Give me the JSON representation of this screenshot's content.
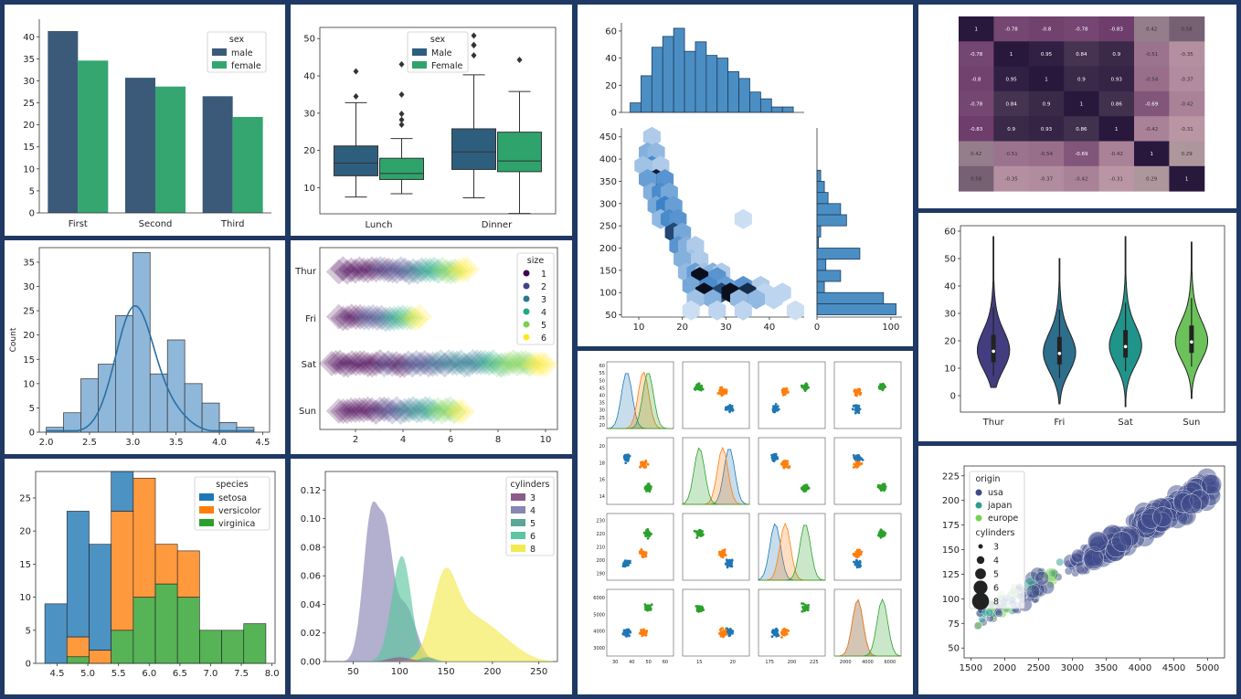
{
  "colors": {
    "frame": "#1f3864",
    "viridis_dark": "#3b5a7a",
    "viridis_green": "#35a670",
    "box_male": "#2e5e7e",
    "box_female": "#2ea36c",
    "hist_blue": "#8fb7d9",
    "kde_blue": "#2a6fa5",
    "tab_blue": "#1f77b4",
    "tab_orange": "#ff7f0e",
    "tab_green": "#2ca02c",
    "heat_dark": "#2b1a3d",
    "heat_light": "#f0d5d0"
  },
  "chart_data": [
    {
      "id": "titanic-bar",
      "type": "bar",
      "categories": [
        "First",
        "Second",
        "Third"
      ],
      "series": [
        {
          "name": "male",
          "values": [
            41.3,
            30.7,
            26.5
          ]
        },
        {
          "name": "female",
          "values": [
            34.6,
            28.7,
            21.8
          ]
        }
      ],
      "legend_title": "sex",
      "legend": [
        "male",
        "female"
      ],
      "ylim": [
        0,
        44
      ],
      "yticks": [
        "0",
        "5",
        "10",
        "15",
        "20",
        "25",
        "30",
        "35",
        "40"
      ],
      "legend_position": "top-right"
    },
    {
      "id": "tips-box",
      "type": "box",
      "categories": [
        "Lunch",
        "Dinner"
      ],
      "series": [
        {
          "name": "Male",
          "boxes": [
            {
              "min": 7.5,
              "q1": 13.2,
              "median": 16.6,
              "q3": 21.2,
              "max": 32.8,
              "outliers": [
                34.5,
                41.2
              ]
            },
            {
              "min": 7.3,
              "q1": 14.9,
              "median": 19.6,
              "q3": 25.8,
              "max": 40.3,
              "outliers": [
                45.5,
                48.2,
                48.3,
                50.8
              ]
            }
          ]
        },
        {
          "name": "Female",
          "boxes": [
            {
              "min": 8.4,
              "q1": 12.2,
              "median": 13.8,
              "q3": 17.9,
              "max": 23.2,
              "outliers": [
                26.9,
                28.2,
                29.8,
                35.0,
                43.1
              ]
            },
            {
              "min": 3.1,
              "q1": 14.3,
              "median": 17.2,
              "q3": 24.9,
              "max": 35.8,
              "outliers": [
                44.3
              ]
            }
          ]
        }
      ],
      "legend_title": "sex",
      "legend": [
        "Male",
        "Female"
      ],
      "ylim": [
        3,
        53
      ],
      "yticks": [
        "10",
        "20",
        "30",
        "40",
        "50"
      ]
    },
    {
      "id": "joint-hex",
      "type": "hexbin",
      "top_hist": {
        "bin_width": 2.5,
        "x_start": 8,
        "values": [
          7,
          27,
          48,
          56,
          62,
          45,
          52,
          42,
          40,
          30,
          25,
          15,
          10,
          4,
          4
        ]
      },
      "right_hist": {
        "bin_width": 25,
        "y_start": 50,
        "values": [
          107,
          90,
          10,
          32,
          12,
          58,
          2,
          5,
          40,
          32,
          15,
          10,
          5
        ]
      },
      "main_yticks": [
        "50",
        "100",
        "150",
        "200",
        "250",
        "300",
        "350",
        "400",
        "450"
      ],
      "main_xticks": [
        "10",
        "20",
        "30",
        "40"
      ],
      "top_yticks": [
        "0",
        "20",
        "40",
        "60"
      ],
      "right_xticks": [
        "0",
        "100"
      ],
      "cells": [
        {
          "x": 13,
          "y": 450,
          "v": 0.2
        },
        {
          "x": 12,
          "y": 415,
          "v": 0.35
        },
        {
          "x": 14,
          "y": 415,
          "v": 0.3
        },
        {
          "x": 13,
          "y": 385,
          "v": 0.55
        },
        {
          "x": 11,
          "y": 385,
          "v": 0.25
        },
        {
          "x": 15,
          "y": 385,
          "v": 0.2
        },
        {
          "x": 14,
          "y": 355,
          "v": 0.95
        },
        {
          "x": 12,
          "y": 355,
          "v": 0.45
        },
        {
          "x": 16,
          "y": 355,
          "v": 0.5
        },
        {
          "x": 13,
          "y": 325,
          "v": 0.35
        },
        {
          "x": 15,
          "y": 325,
          "v": 0.55
        },
        {
          "x": 17,
          "y": 325,
          "v": 0.4
        },
        {
          "x": 14,
          "y": 295,
          "v": 0.4
        },
        {
          "x": 16,
          "y": 295,
          "v": 0.6
        },
        {
          "x": 18,
          "y": 295,
          "v": 0.45
        },
        {
          "x": 15,
          "y": 265,
          "v": 0.3
        },
        {
          "x": 17,
          "y": 265,
          "v": 0.55
        },
        {
          "x": 19,
          "y": 265,
          "v": 0.5
        },
        {
          "x": 18,
          "y": 235,
          "v": 0.8
        },
        {
          "x": 20,
          "y": 235,
          "v": 0.4
        },
        {
          "x": 34,
          "y": 265,
          "v": 0.1
        },
        {
          "x": 19,
          "y": 205,
          "v": 0.5
        },
        {
          "x": 21,
          "y": 205,
          "v": 0.35
        },
        {
          "x": 23,
          "y": 205,
          "v": 0.2
        },
        {
          "x": 22,
          "y": 175,
          "v": 0.25
        },
        {
          "x": 20,
          "y": 175,
          "v": 0.35
        },
        {
          "x": 24,
          "y": 175,
          "v": 0.2
        },
        {
          "x": 21,
          "y": 145,
          "v": 0.3
        },
        {
          "x": 23,
          "y": 145,
          "v": 0.45
        },
        {
          "x": 25,
          "y": 145,
          "v": 0.25
        },
        {
          "x": 27,
          "y": 145,
          "v": 0.35
        },
        {
          "x": 29,
          "y": 145,
          "v": 0.2
        },
        {
          "x": 24,
          "y": 135,
          "v": 1.0
        },
        {
          "x": 28,
          "y": 135,
          "v": 0.5
        },
        {
          "x": 22,
          "y": 115,
          "v": 0.4
        },
        {
          "x": 26,
          "y": 115,
          "v": 0.55
        },
        {
          "x": 30,
          "y": 115,
          "v": 0.45
        },
        {
          "x": 34,
          "y": 115,
          "v": 0.5
        },
        {
          "x": 38,
          "y": 115,
          "v": 0.2
        },
        {
          "x": 25,
          "y": 100,
          "v": 1.0
        },
        {
          "x": 29,
          "y": 100,
          "v": 0.8
        },
        {
          "x": 31,
          "y": 100,
          "v": 1.0
        },
        {
          "x": 35,
          "y": 100,
          "v": 0.9
        },
        {
          "x": 39,
          "y": 100,
          "v": 0.15
        },
        {
          "x": 43,
          "y": 100,
          "v": 0.15
        },
        {
          "x": 23,
          "y": 85,
          "v": 0.25
        },
        {
          "x": 27,
          "y": 85,
          "v": 0.35
        },
        {
          "x": 33,
          "y": 85,
          "v": 0.3
        },
        {
          "x": 37,
          "y": 85,
          "v": 0.3
        },
        {
          "x": 41,
          "y": 85,
          "v": 0.15
        },
        {
          "x": 22,
          "y": 60,
          "v": 0.1
        },
        {
          "x": 28,
          "y": 60,
          "v": 0.15
        },
        {
          "x": 34,
          "y": 60,
          "v": 0.15
        },
        {
          "x": 46,
          "y": 60,
          "v": 0.1
        }
      ]
    },
    {
      "id": "corr-heatmap",
      "type": "heatmap",
      "matrix": [
        [
          "1",
          "-0.78",
          "-0.8",
          "-0.78",
          "-0.83",
          "0.42",
          "0.58"
        ],
        [
          "-0.78",
          "1",
          "0.95",
          "0.84",
          "0.9",
          "-0.51",
          "-0.35"
        ],
        [
          "-0.8",
          "0.95",
          "1",
          "0.9",
          "0.93",
          "-0.54",
          "-0.37"
        ],
        [
          "-0.78",
          "0.84",
          "0.9",
          "1",
          "0.86",
          "-0.69",
          "-0.42"
        ],
        [
          "-0.83",
          "0.9",
          "0.93",
          "0.86",
          "1",
          "-0.42",
          "-0.31"
        ],
        [
          "0.42",
          "-0.51",
          "-0.54",
          "-0.69",
          "-0.42",
          "1",
          "0.29"
        ],
        [
          "0.58",
          "-0.35",
          "-0.37",
          "-0.42",
          "-0.31",
          "0.29",
          "1"
        ]
      ]
    },
    {
      "id": "hist-kde",
      "type": "bar",
      "bins_start": 2.0,
      "bin_width": 0.2,
      "values": [
        1,
        4,
        11,
        14,
        24,
        37,
        12,
        19,
        10,
        6,
        2,
        1
      ],
      "ylabel": "Count",
      "xticks": [
        "2.0",
        "2.5",
        "3.0",
        "3.5",
        "4.0",
        "4.5"
      ],
      "yticks": [
        "0",
        "5",
        "10",
        "15",
        "20",
        "25",
        "30",
        "35"
      ],
      "ylim": [
        0,
        38
      ],
      "kde": true
    },
    {
      "id": "strip-diamonds",
      "type": "scatter",
      "categories": [
        "Thur",
        "Fri",
        "Sat",
        "Sun"
      ],
      "xticks": [
        "2",
        "4",
        "6",
        "8",
        "10"
      ],
      "xlim": [
        0.5,
        10.5
      ],
      "legend_title": "size",
      "legend": [
        "1",
        "2",
        "3",
        "4",
        "5",
        "6"
      ],
      "legend_colors": [
        "#440154",
        "#414487",
        "#2a788e",
        "#22a884",
        "#7ad151",
        "#fde725"
      ],
      "ranges": [
        {
          "cat": "Thur",
          "from": 1.3,
          "to": 6.7
        },
        {
          "cat": "Fri",
          "from": 1.3,
          "to": 4.7
        },
        {
          "cat": "Sat",
          "from": 1.0,
          "to": 10.0
        },
        {
          "cat": "Sun",
          "from": 1.3,
          "to": 6.5
        }
      ]
    },
    {
      "id": "pairplot",
      "type": "scatter",
      "species_colors": [
        "#1f77b4",
        "#ff7f0e",
        "#2ca02c"
      ],
      "diag_yticks": [
        "20",
        "25",
        "30",
        "35",
        "40",
        "45",
        "50",
        "55",
        "60"
      ],
      "row2_yticks": [
        "14",
        "16",
        "18",
        "20"
      ],
      "row3_yticks": [
        "190",
        "200",
        "210",
        "220",
        "230"
      ],
      "row4_yticks": [
        "3000",
        "4000",
        "5000",
        "6000"
      ],
      "xticks_col1": [
        "30",
        "40",
        "50",
        "60"
      ],
      "xticks_col2": [
        "15",
        "20"
      ],
      "xticks_col3": [
        "175",
        "200",
        "225"
      ],
      "xticks_col4": [
        "2000",
        "4000",
        "6000"
      ]
    },
    {
      "id": "violin",
      "type": "violin",
      "categories": [
        "Thur",
        "Fri",
        "Sat",
        "Sun"
      ],
      "medians": [
        16.2,
        15.4,
        17.9,
        19.6
      ],
      "ranges": [
        [
          3,
          58
        ],
        [
          -3,
          50
        ],
        [
          -4,
          58
        ],
        [
          -1,
          56
        ]
      ],
      "yticks": [
        "0",
        "10",
        "20",
        "30",
        "40",
        "50",
        "60"
      ],
      "ylim": [
        -6,
        62
      ],
      "fill": [
        "#433d80",
        "#2c6e8b",
        "#20948a",
        "#6cc25a"
      ]
    },
    {
      "id": "stacked-hist",
      "type": "bar",
      "bins_start": 4.3,
      "bin_width": 0.36,
      "series": [
        {
          "name": "setosa",
          "values": [
            9,
            19,
            16,
            6,
            0,
            0,
            0,
            0,
            0,
            0
          ]
        },
        {
          "name": "versicolor",
          "values": [
            0,
            3,
            2,
            18,
            18,
            6,
            7,
            0,
            0,
            0
          ]
        },
        {
          "name": "virginica",
          "values": [
            0,
            1,
            0,
            5,
            10,
            12,
            10,
            5,
            5,
            6
          ]
        }
      ],
      "legend_title": "species",
      "legend": [
        "setosa",
        "versicolor",
        "virginica"
      ],
      "xticks": [
        "4.5",
        "5.0",
        "5.5",
        "6.0",
        "6.5",
        "7.0",
        "7.5",
        "8.0"
      ],
      "yticks": [
        "0",
        "5",
        "10",
        "15",
        "20",
        "25"
      ],
      "ylim": [
        0,
        29
      ]
    },
    {
      "id": "kde-cylinders",
      "type": "area",
      "legend_title": "cylinders",
      "legend": [
        "3",
        "4",
        "5",
        "6",
        "8"
      ],
      "legend_colors": [
        "#8b5b8a",
        "#8886b4",
        "#5aa796",
        "#5cc6a0",
        "#f2ea52"
      ],
      "xticks": [
        "50",
        "100",
        "150",
        "200",
        "250"
      ],
      "yticks": [
        "0.00",
        "0.02",
        "0.04",
        "0.06",
        "0.08",
        "0.10",
        "0.12"
      ],
      "ylim": [
        0,
        0.133
      ],
      "xlim": [
        20,
        270
      ]
    },
    {
      "id": "bubble",
      "type": "scatter",
      "legend_origin_title": "origin",
      "legend_origin": [
        "usa",
        "japan",
        "europe"
      ],
      "legend_cyl_title": "cylinders",
      "legend_cyl": [
        "3",
        "4",
        "5",
        "6",
        "8"
      ],
      "origin_colors": [
        "#3e4a89",
        "#2a9d8f",
        "#7ad151"
      ],
      "xticks": [
        "1500",
        "2000",
        "2500",
        "3000",
        "3500",
        "4000",
        "4500",
        "5000"
      ],
      "yticks": [
        "50",
        "75",
        "100",
        "125",
        "150",
        "175",
        "200",
        "225"
      ],
      "xlim": [
        1400,
        5250
      ],
      "ylim": [
        40,
        235
      ]
    }
  ]
}
